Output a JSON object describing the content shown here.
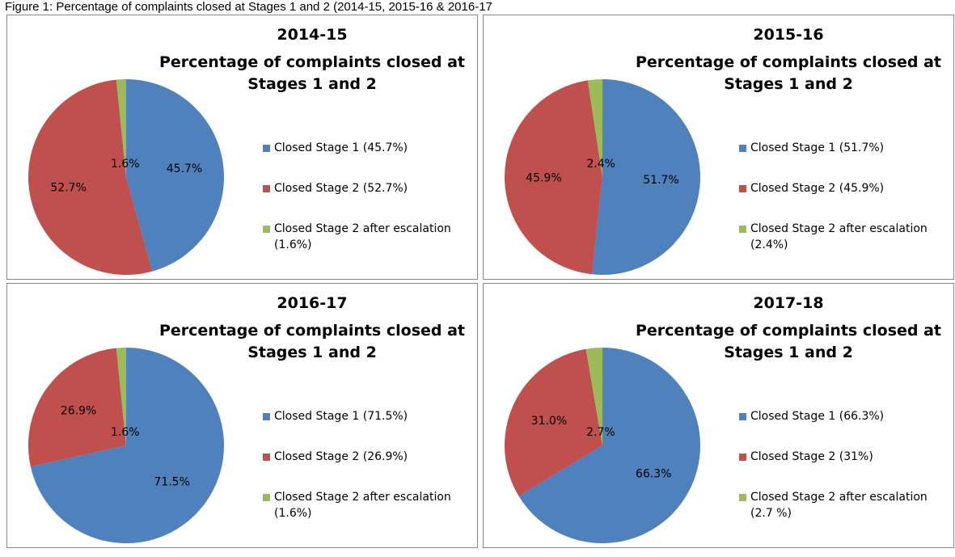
{
  "caption": "Figure 1: Percentage of complaints closed at Stages 1 and 2 (2014-15, 2015-16 & 2016-17",
  "chart_data": [
    {
      "type": "pie",
      "title": "2014-15",
      "subtitle": [
        "Percentage of complaints closed at",
        "Stages 1 and 2"
      ],
      "series": [
        {
          "name": "Closed Stage 1 (45.7%)",
          "color": "#4f81bd"
        },
        {
          "name": "Closed Stage 2 (52.7%)",
          "color": "#c0504d"
        },
        {
          "name": "Closed Stage 2 after escalation (1.6%)",
          "color": "#9bbb59"
        }
      ],
      "values": [
        45.7,
        52.7,
        1.6
      ],
      "value_labels": [
        "45.7%",
        "52.7%",
        "1.6%"
      ]
    },
    {
      "type": "pie",
      "title": "2015-16",
      "subtitle": [
        "Percentage of complaints closed at",
        "Stages 1 and 2"
      ],
      "series": [
        {
          "name": "Closed Stage 1 (51.7%)",
          "color": "#4f81bd"
        },
        {
          "name": "Closed Stage 2 (45.9%)",
          "color": "#c0504d"
        },
        {
          "name": "Closed Stage 2 after escalation (2.4%)",
          "color": "#9bbb59"
        }
      ],
      "values": [
        51.7,
        45.9,
        2.4
      ],
      "value_labels": [
        "51.7%",
        "45.9%",
        "2.4%"
      ]
    },
    {
      "type": "pie",
      "title": "2016-17",
      "subtitle": [
        "Percentage of complaints closed at",
        "Stages 1 and 2"
      ],
      "series": [
        {
          "name": "Closed Stage 1 (71.5%)",
          "color": "#4f81bd"
        },
        {
          "name": "Closed Stage 2 (26.9%)",
          "color": "#c0504d"
        },
        {
          "name": "Closed Stage 2 after escalation (1.6%)",
          "color": "#9bbb59"
        }
      ],
      "values": [
        71.5,
        26.9,
        1.6
      ],
      "value_labels": [
        "71.5%",
        "26.9%",
        "1.6%"
      ]
    },
    {
      "type": "pie",
      "title": "2017-18",
      "subtitle": [
        "Percentage of complaints closed at",
        "Stages 1 and 2"
      ],
      "series": [
        {
          "name": "Closed Stage 1 (66.3%)",
          "color": "#4f81bd"
        },
        {
          "name": "Closed Stage 2 (31%)",
          "color": "#c0504d"
        },
        {
          "name": "Closed Stage 2 after escalation (2.7 %)",
          "color": "#9bbb59"
        }
      ],
      "values": [
        66.3,
        31,
        2.7
      ],
      "value_labels": [
        "66.3%",
        "31.0%",
        "2.7%"
      ]
    }
  ]
}
